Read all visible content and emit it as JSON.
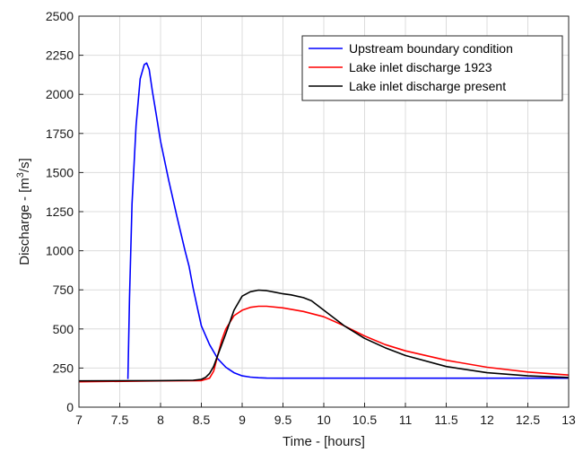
{
  "chart_data": {
    "type": "line",
    "title": "",
    "xlabel": "Time - [hours]",
    "ylabel_prefix": "Discharge - [m",
    "ylabel_exp": "3",
    "ylabel_suffix": "/s]",
    "xlim": [
      7,
      13
    ],
    "ylim": [
      0,
      2500
    ],
    "xticks": [
      7,
      7.5,
      8,
      8.5,
      9,
      9.5,
      10,
      10.5,
      11,
      11.5,
      12,
      12.5,
      13
    ],
    "yticks": [
      0,
      250,
      500,
      750,
      1000,
      1250,
      1500,
      1750,
      2000,
      2250,
      2500
    ],
    "grid": true,
    "legend_position": "top-right",
    "series": [
      {
        "name": "Upstream boundary condition",
        "color": "#0000ff",
        "x": [
          7.6,
          7.62,
          7.65,
          7.7,
          7.75,
          7.8,
          7.83,
          7.86,
          7.9,
          7.95,
          8.0,
          8.1,
          8.2,
          8.3,
          8.35,
          8.4,
          8.45,
          8.5,
          8.6,
          8.7,
          8.8,
          8.9,
          9.0,
          9.1,
          9.2,
          9.3,
          9.5,
          10,
          11,
          12,
          13
        ],
        "y": [
          180,
          700,
          1300,
          1800,
          2100,
          2190,
          2200,
          2160,
          2020,
          1860,
          1700,
          1450,
          1220,
          1000,
          900,
          760,
          640,
          520,
          400,
          310,
          255,
          220,
          200,
          192,
          188,
          186,
          185,
          185,
          185,
          185,
          185
        ]
      },
      {
        "name": "Lake inlet discharge 1923",
        "color": "#ff0000",
        "x": [
          7,
          8,
          8.5,
          8.6,
          8.65,
          8.7,
          8.75,
          8.8,
          8.9,
          9.0,
          9.1,
          9.2,
          9.3,
          9.5,
          9.75,
          10,
          10.25,
          10.5,
          10.75,
          11,
          11.5,
          12,
          12.5,
          13
        ],
        "y": [
          162,
          168,
          170,
          185,
          230,
          330,
          430,
          500,
          585,
          620,
          638,
          645,
          645,
          635,
          612,
          578,
          520,
          455,
          400,
          360,
          300,
          255,
          225,
          205
        ]
      },
      {
        "name": "Lake inlet discharge present",
        "color": "#000000",
        "x": [
          7,
          8,
          8.4,
          8.5,
          8.55,
          8.6,
          8.65,
          8.7,
          8.8,
          8.9,
          9.0,
          9.1,
          9.2,
          9.3,
          9.4,
          9.5,
          9.6,
          9.75,
          9.85,
          10,
          10.25,
          10.5,
          10.75,
          11,
          11.5,
          12,
          12.5,
          13
        ],
        "y": [
          168,
          170,
          172,
          178,
          190,
          215,
          260,
          330,
          470,
          620,
          710,
          738,
          748,
          745,
          735,
          725,
          718,
          700,
          680,
          620,
          520,
          440,
          380,
          330,
          260,
          220,
          200,
          190
        ]
      }
    ]
  }
}
